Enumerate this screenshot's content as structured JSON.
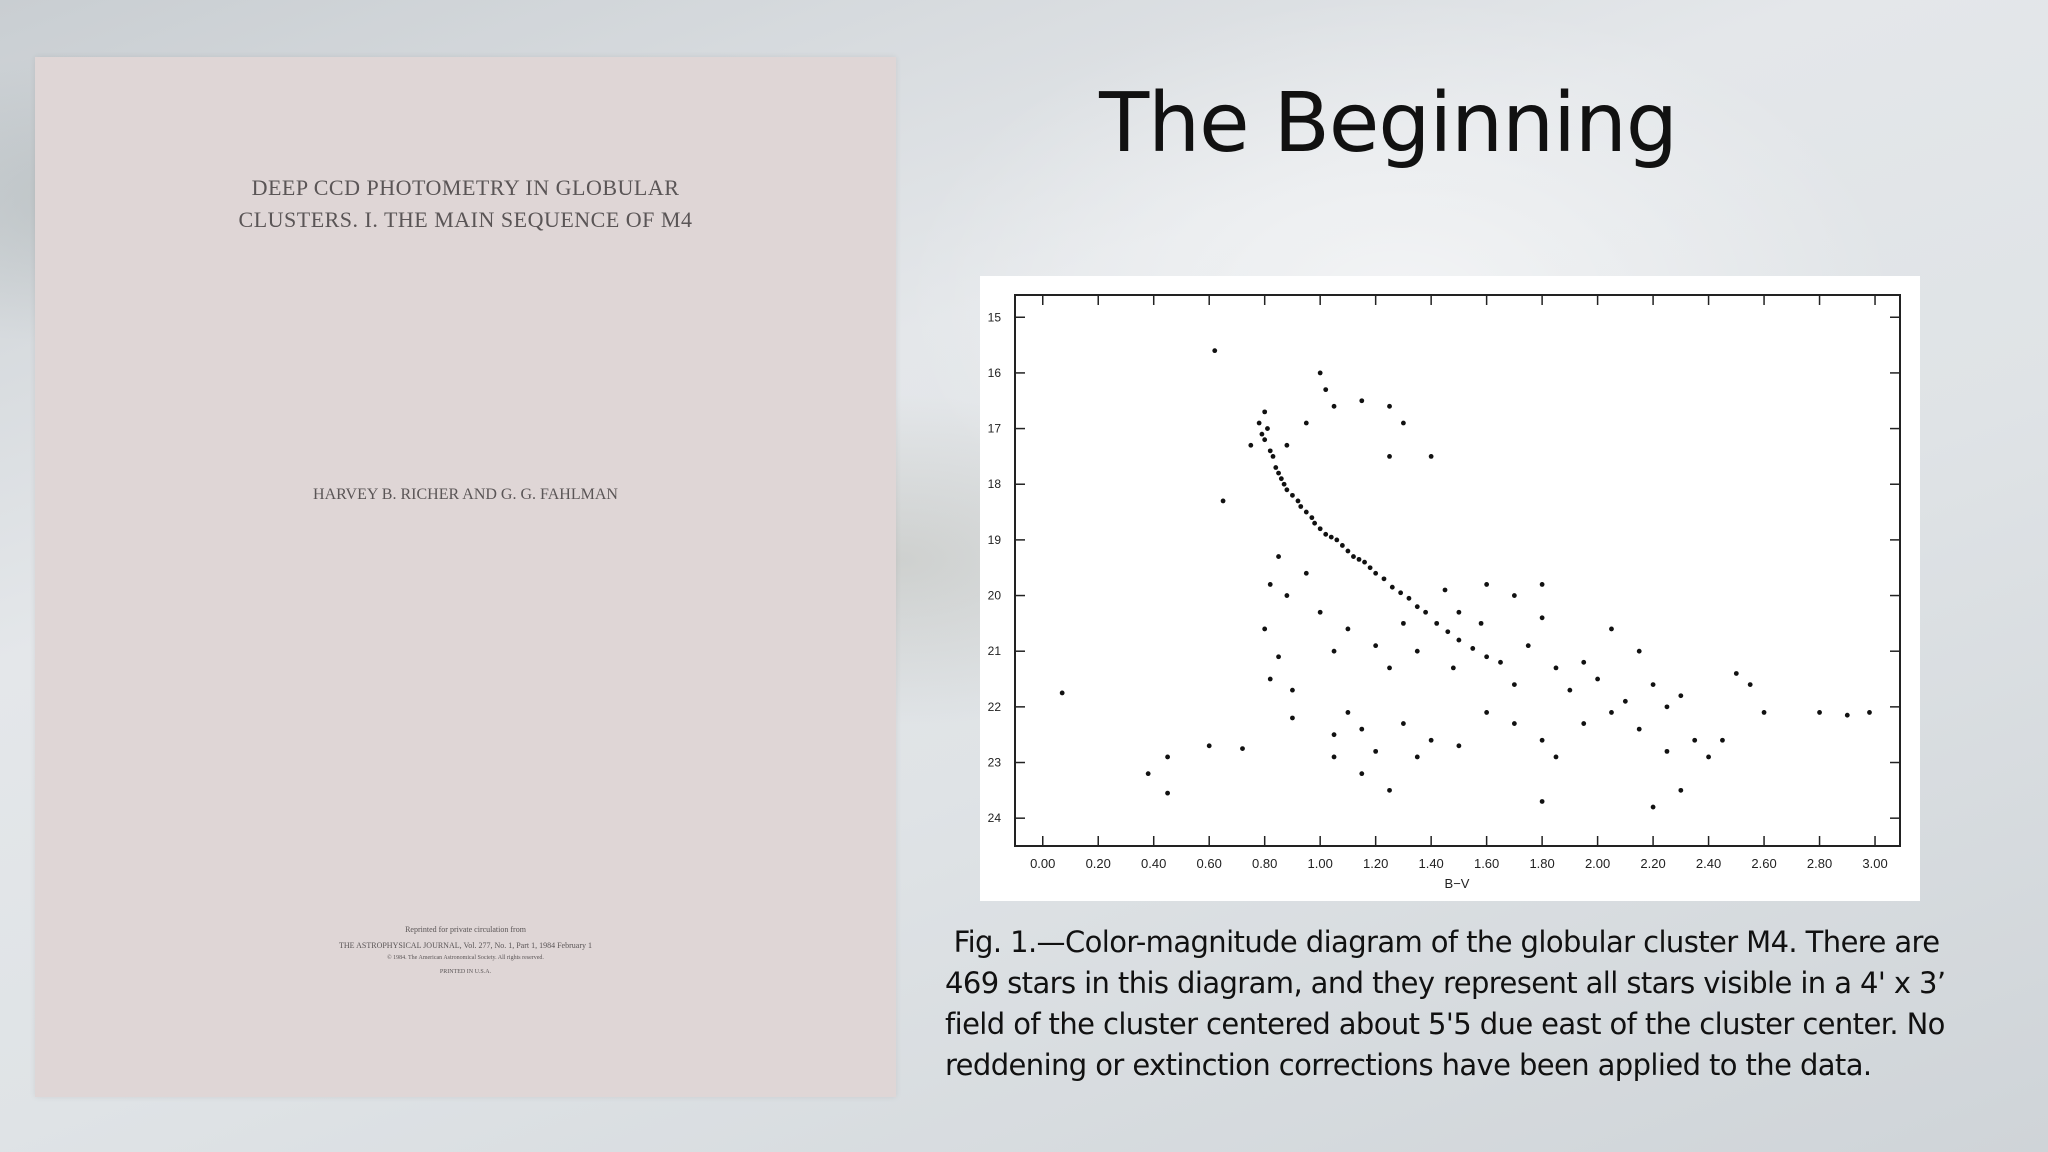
{
  "slide": {
    "title": "The Beginning",
    "paper": {
      "title_lines": [
        "DEEP CCD PHOTOMETRY IN GLOBULAR",
        "CLUSTERS. I. THE MAIN SEQUENCE OF M4"
      ],
      "authors": "HARVEY B. RICHER AND G. G. FAHLMAN",
      "footer_lines": [
        "Reprinted for private circulation from",
        "THE ASTROPHYSICAL JOURNAL, Vol. 277, No. 1, Part 1, 1984 February 1",
        "© 1984. The American Astronomical Society. All rights reserved.",
        "PRINTED IN U.S.A."
      ]
    },
    "caption": [
      " Fig. 1.—Color-magnitude diagram of the globular cluster M4. There are",
      "469 stars in this diagram, and they represent all stars visible in a 4' x 3’",
      "field of the cluster centered about 5'5 due east of the cluster center. No",
      "reddening or extinction corrections have been applied to the data."
    ]
  },
  "chart_data": {
    "type": "scatter",
    "x_label": "B−V",
    "color": "#111111",
    "xlim": [
      -0.1,
      3.09
    ],
    "ylim": [
      24.5,
      14.6
    ],
    "xticks": [
      {
        "value": 0,
        "label": "0.00"
      },
      {
        "value": 0.2,
        "label": "0.20"
      },
      {
        "value": 0.4,
        "label": "0.40"
      },
      {
        "value": 0.6,
        "label": "0.60"
      },
      {
        "value": 0.8,
        "label": "0.80"
      },
      {
        "value": 1,
        "label": "1.00"
      },
      {
        "value": 1.2,
        "label": "1.20"
      },
      {
        "value": 1.4,
        "label": "1.40"
      },
      {
        "value": 1.6,
        "label": "1.60"
      },
      {
        "value": 1.8,
        "label": "1.80"
      },
      {
        "value": 2,
        "label": "2.00"
      },
      {
        "value": 2.2,
        "label": "2.20"
      },
      {
        "value": 2.4,
        "label": "2.40"
      },
      {
        "value": 2.6,
        "label": "2.60"
      },
      {
        "value": 2.8,
        "label": "2.80"
      },
      {
        "value": 3,
        "label": "3.00"
      }
    ],
    "yticks": [
      15,
      16,
      17,
      18,
      19,
      20,
      21,
      22,
      23,
      24
    ],
    "x": [
      0.78,
      0.79,
      0.8,
      0.81,
      0.8,
      0.82,
      0.83,
      0.84,
      0.85,
      0.86,
      0.87,
      0.88,
      0.9,
      0.92,
      0.93,
      0.95,
      0.97,
      0.98,
      1.0,
      1.02,
      1.04,
      1.06,
      1.08,
      1.1,
      1.12,
      1.14,
      1.16,
      1.18,
      1.2,
      1.23,
      1.26,
      1.29,
      1.32,
      1.35,
      1.38,
      1.42,
      1.46,
      1.5,
      1.55,
      1.6,
      0.75,
      0.88,
      0.95,
      1.02,
      1.0,
      1.05,
      1.15,
      1.25,
      1.3,
      1.4,
      0.65,
      0.85,
      0.82,
      0.88,
      0.95,
      1.0,
      0.8,
      0.85,
      0.82,
      0.9,
      1.05,
      1.1,
      1.2,
      1.25,
      1.3,
      1.35,
      1.45,
      1.5,
      1.48,
      1.6,
      1.58,
      1.65,
      1.7,
      1.75,
      1.8,
      1.85,
      1.9,
      1.95,
      2.0,
      2.05,
      2.1,
      2.15,
      2.2,
      2.25,
      2.3,
      1.1,
      1.05,
      1.15,
      1.2,
      1.3,
      1.4,
      1.5,
      1.6,
      1.7,
      1.8,
      1.85,
      1.95,
      2.05,
      2.15,
      2.25,
      2.35,
      2.4,
      2.45,
      2.5,
      2.55,
      2.6,
      2.8,
      2.9,
      2.98,
      1.15,
      1.25,
      1.8,
      2.2,
      2.3,
      1.05,
      0.9,
      1.35,
      0.62,
      0.07,
      0.45,
      0.38,
      0.45,
      0.6,
      0.72,
      1.25,
      1.8,
      1.7
    ],
    "values": [
      16.9,
      17.1,
      17.2,
      17.0,
      16.7,
      17.4,
      17.5,
      17.7,
      17.8,
      17.9,
      18.0,
      18.1,
      18.2,
      18.3,
      18.4,
      18.5,
      18.6,
      18.7,
      18.8,
      18.9,
      18.95,
      19.0,
      19.1,
      19.2,
      19.3,
      19.35,
      19.4,
      19.5,
      19.6,
      19.7,
      19.85,
      19.95,
      20.05,
      20.2,
      20.3,
      20.5,
      20.65,
      20.8,
      20.95,
      21.1,
      17.3,
      17.3,
      16.9,
      16.3,
      16.0,
      16.6,
      16.5,
      16.6,
      16.9,
      17.5,
      18.3,
      19.3,
      19.8,
      20.0,
      19.6,
      20.3,
      20.6,
      21.1,
      21.5,
      21.7,
      21.0,
      20.6,
      20.9,
      21.3,
      20.5,
      21.0,
      19.9,
      20.3,
      21.3,
      19.8,
      20.5,
      21.2,
      21.6,
      20.9,
      19.8,
      21.3,
      21.7,
      21.2,
      21.5,
      20.6,
      21.9,
      21.0,
      21.6,
      22.0,
      21.8,
      22.1,
      22.5,
      22.4,
      22.8,
      22.3,
      22.6,
      22.7,
      22.1,
      22.3,
      22.6,
      22.9,
      22.3,
      22.1,
      22.4,
      22.8,
      22.6,
      22.9,
      22.6,
      21.4,
      21.6,
      22.1,
      22.1,
      22.15,
      22.1,
      23.2,
      23.5,
      23.7,
      23.8,
      23.5,
      22.9,
      22.2,
      22.9,
      15.6,
      21.75,
      22.9,
      23.2,
      23.55,
      22.7,
      22.75,
      17.5,
      20.4,
      20.0
    ]
  }
}
